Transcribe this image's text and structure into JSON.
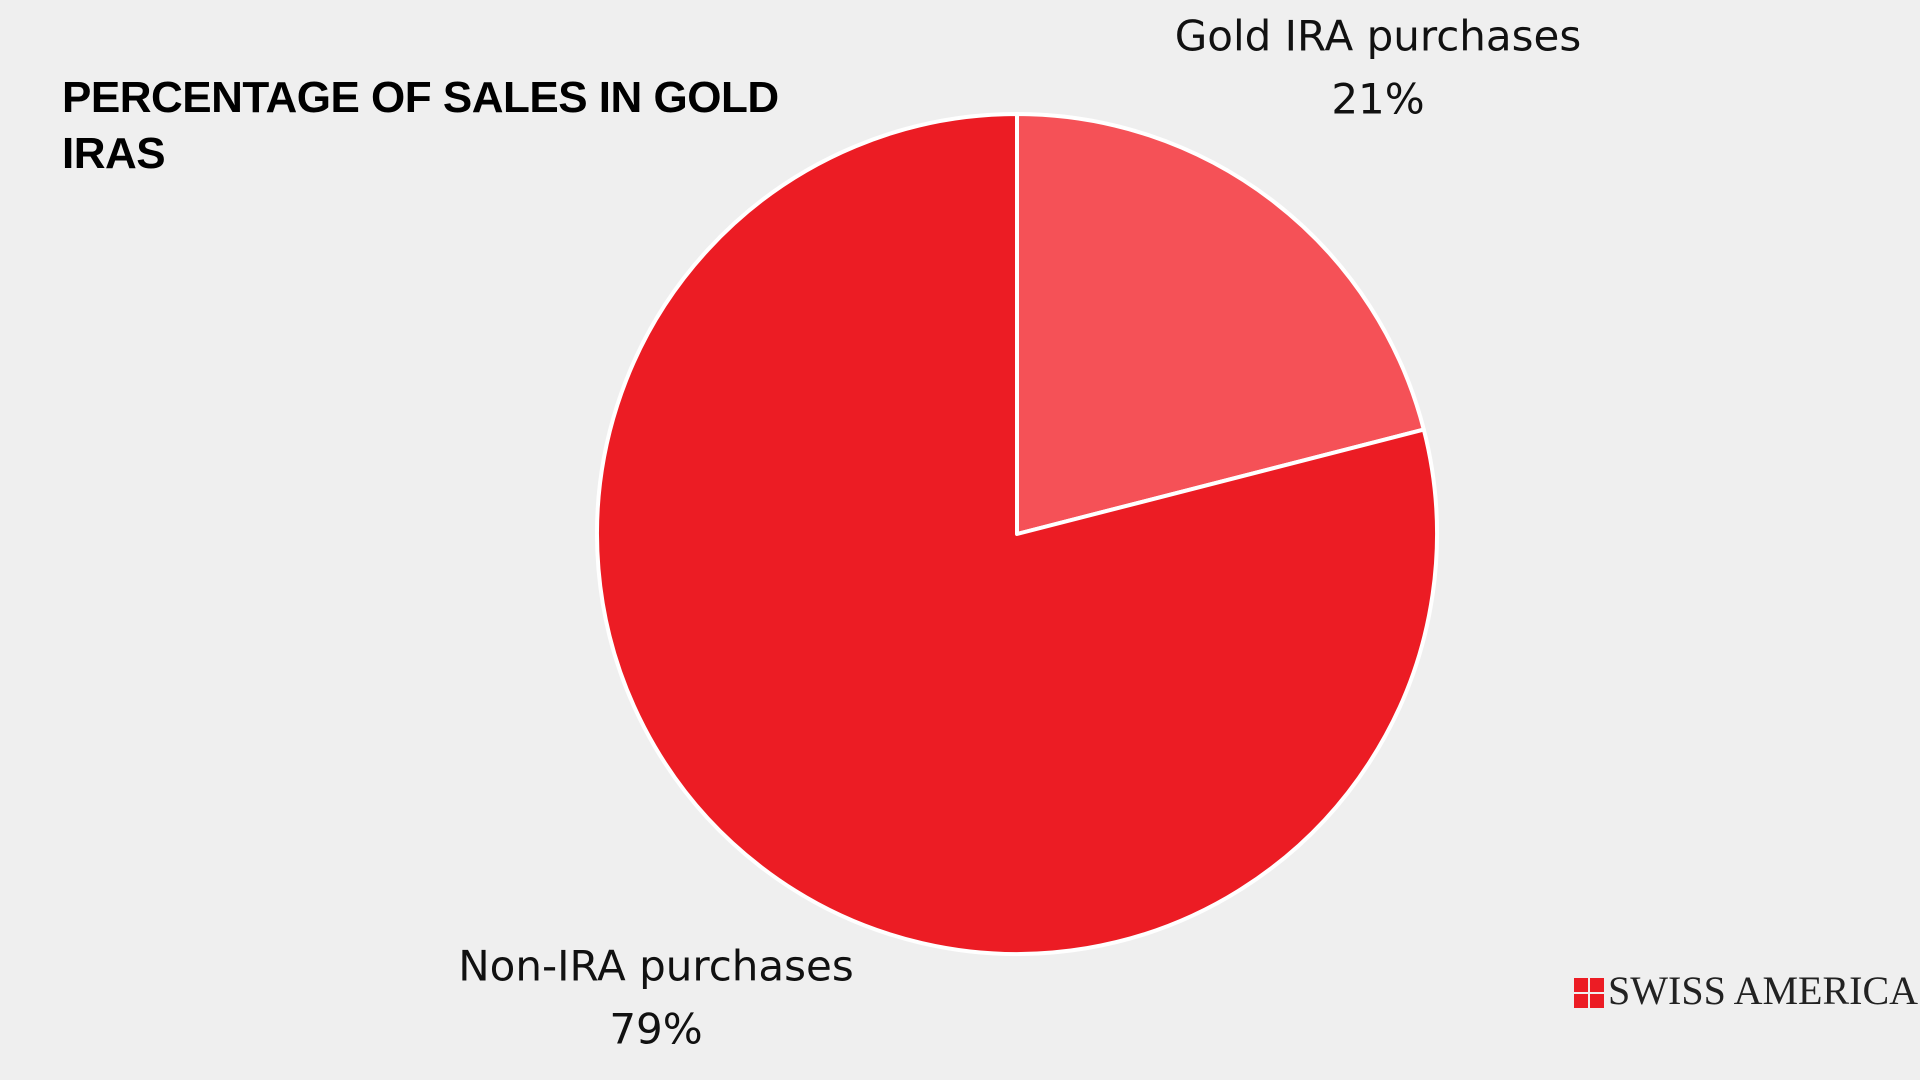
{
  "chart_data": {
    "type": "pie",
    "title": "PERCENTAGE OF SALES IN GOLD IRAS",
    "categories": [
      "Gold IRA purchases",
      "Non-IRA purchases"
    ],
    "values": [
      21,
      79
    ],
    "value_labels": [
      "21%",
      "79%"
    ],
    "colors": [
      "#f55157",
      "#ec1c24"
    ]
  },
  "logo": "SWISS AMERICA"
}
